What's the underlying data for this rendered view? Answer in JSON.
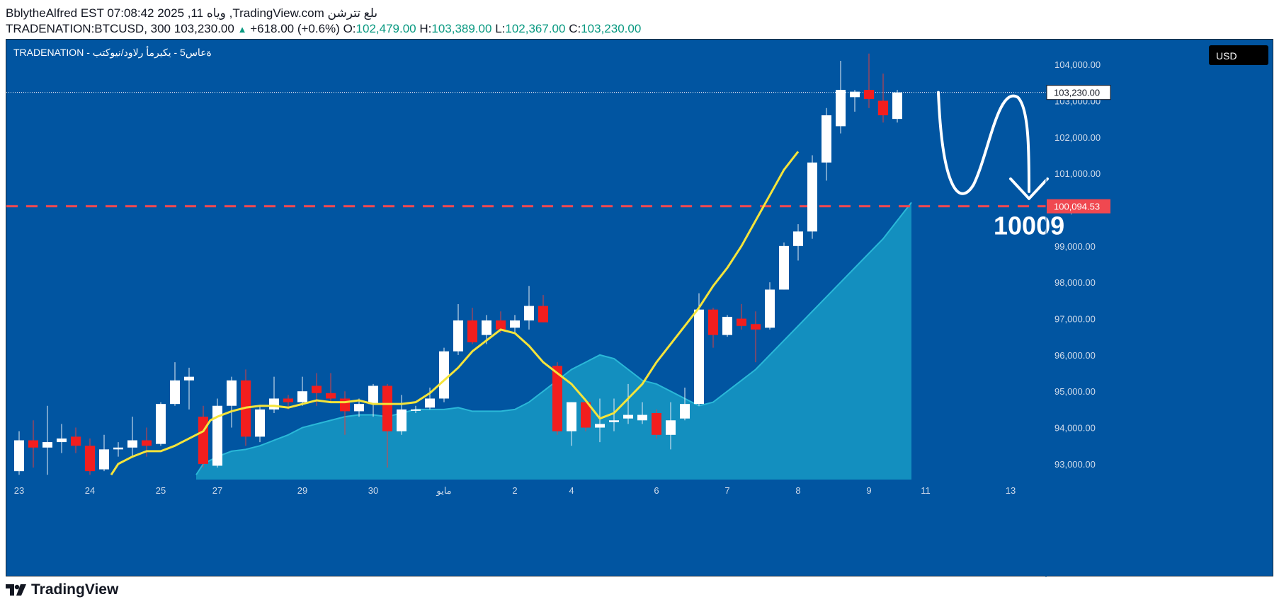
{
  "header": {
    "line1": "BblytheAlfred EST 07:08:42 2025 ,11 وياه ,TradingView.com ىلع تترشن",
    "symbol": "TRADENATION:BTCUSD, 300",
    "last": "103,230.00",
    "change_arrow": "▲",
    "change": "+618.00 (+0.6%)",
    "o_label": "O:",
    "o": "102,479.00",
    "h_label": "H:",
    "h": "103,389.00",
    "l_label": "L:",
    "l": "102,367.00",
    "c_label": "C:",
    "c": "103,230.00"
  },
  "chart_title": "TRADENATION - ة‌عاس5 - يكيرمأ رلاود/نيوكتب",
  "currency_button": "USD",
  "brand": "TradingView",
  "colors": {
    "background": "#0155a1",
    "up": "#ffffff",
    "down": "#f21e1e",
    "ma_fast": "#f5e43a",
    "area": "#1aa3c9",
    "dashed_level": "#f04850",
    "annotation": "#ffffff"
  },
  "chart_data": {
    "type": "candlestick",
    "title": "TRADENATION:BTCUSD 5h",
    "ylim": [
      92700,
      104500
    ],
    "y_ticks": [
      93000,
      94000,
      95000,
      96000,
      97000,
      98000,
      99000,
      100000,
      101000,
      102000,
      103000,
      104000
    ],
    "y_tick_labels": [
      "93,000.00",
      "94,000.00",
      "95,000.00",
      "96,000.00",
      "97,000.00",
      "98,000.00",
      "99,000.00",
      "100,000.00",
      "101,000.00",
      "102,000.00",
      "103,000.00",
      "104,000.00"
    ],
    "x_ticks": [
      {
        "i": 0,
        "label": "23"
      },
      {
        "i": 5,
        "label": "24"
      },
      {
        "i": 10,
        "label": "25"
      },
      {
        "i": 14,
        "label": "27"
      },
      {
        "i": 20,
        "label": "29"
      },
      {
        "i": 25,
        "label": "30"
      },
      {
        "i": 30,
        "label": "مايو"
      },
      {
        "i": 35,
        "label": "2"
      },
      {
        "i": 39,
        "label": "4"
      },
      {
        "i": 45,
        "label": "6"
      },
      {
        "i": 50,
        "label": "7"
      },
      {
        "i": 55,
        "label": "8"
      },
      {
        "i": 60,
        "label": "9"
      },
      {
        "i": 64,
        "label": "11"
      },
      {
        "i": 70,
        "label": "13"
      }
    ],
    "n_slots": 73,
    "candles": [
      {
        "o": 92800,
        "h": 93900,
        "l": 92700,
        "c": 93650
      },
      {
        "o": 93650,
        "h": 94200,
        "l": 92900,
        "c": 93450
      },
      {
        "o": 93450,
        "h": 94600,
        "l": 92700,
        "c": 93600
      },
      {
        "o": 93600,
        "h": 94100,
        "l": 93300,
        "c": 93700
      },
      {
        "o": 93750,
        "h": 94000,
        "l": 93300,
        "c": 93500
      },
      {
        "o": 93500,
        "h": 93700,
        "l": 92700,
        "c": 92800
      },
      {
        "o": 92850,
        "h": 93800,
        "l": 92800,
        "c": 93400
      },
      {
        "o": 93400,
        "h": 93600,
        "l": 93200,
        "c": 93450
      },
      {
        "o": 93450,
        "h": 94300,
        "l": 93200,
        "c": 93650
      },
      {
        "o": 93650,
        "h": 94000,
        "l": 93200,
        "c": 93500
      },
      {
        "o": 93550,
        "h": 94700,
        "l": 93500,
        "c": 94650
      },
      {
        "o": 94650,
        "h": 95800,
        "l": 94600,
        "c": 95300
      },
      {
        "o": 95300,
        "h": 95650,
        "l": 94500,
        "c": 95400
      },
      {
        "o": 94300,
        "h": 94600,
        "l": 92900,
        "c": 93000
      },
      {
        "o": 92950,
        "h": 94800,
        "l": 92900,
        "c": 94600
      },
      {
        "o": 94600,
        "h": 95400,
        "l": 94000,
        "c": 95300
      },
      {
        "o": 95300,
        "h": 95600,
        "l": 93500,
        "c": 93750
      },
      {
        "o": 93750,
        "h": 94600,
        "l": 93600,
        "c": 94500
      },
      {
        "o": 94500,
        "h": 95400,
        "l": 94400,
        "c": 94800
      },
      {
        "o": 94800,
        "h": 94900,
        "l": 94500,
        "c": 94700
      },
      {
        "o": 94700,
        "h": 95400,
        "l": 94600,
        "c": 95000
      },
      {
        "o": 95150,
        "h": 95500,
        "l": 94600,
        "c": 94950
      },
      {
        "o": 94950,
        "h": 95500,
        "l": 94700,
        "c": 94800
      },
      {
        "o": 94800,
        "h": 95000,
        "l": 93800,
        "c": 94450
      },
      {
        "o": 94450,
        "h": 94800,
        "l": 94300,
        "c": 94650
      },
      {
        "o": 94650,
        "h": 95200,
        "l": 94300,
        "c": 95150
      },
      {
        "o": 95150,
        "h": 95200,
        "l": 92900,
        "c": 93900
      },
      {
        "o": 93900,
        "h": 94900,
        "l": 93800,
        "c": 94500
      },
      {
        "o": 94500,
        "h": 94600,
        "l": 94400,
        "c": 94500
      },
      {
        "o": 94550,
        "h": 95100,
        "l": 94500,
        "c": 94800
      },
      {
        "o": 94800,
        "h": 96200,
        "l": 94700,
        "c": 96100
      },
      {
        "o": 96100,
        "h": 97400,
        "l": 96000,
        "c": 96950
      },
      {
        "o": 96950,
        "h": 97300,
        "l": 96300,
        "c": 96350
      },
      {
        "o": 96550,
        "h": 97100,
        "l": 96300,
        "c": 96950
      },
      {
        "o": 96950,
        "h": 97200,
        "l": 96600,
        "c": 96700
      },
      {
        "o": 96750,
        "h": 97100,
        "l": 96600,
        "c": 96950
      },
      {
        "o": 96950,
        "h": 97900,
        "l": 96700,
        "c": 97350
      },
      {
        "o": 97350,
        "h": 97650,
        "l": 96900,
        "c": 96900
      },
      {
        "o": 95700,
        "h": 95800,
        "l": 93800,
        "c": 93900
      },
      {
        "o": 93900,
        "h": 94700,
        "l": 93500,
        "c": 94700
      },
      {
        "o": 94700,
        "h": 94700,
        "l": 93900,
        "c": 94000
      },
      {
        "o": 94000,
        "h": 94800,
        "l": 93600,
        "c": 94100
      },
      {
        "o": 94150,
        "h": 94800,
        "l": 93900,
        "c": 94200
      },
      {
        "o": 94250,
        "h": 95200,
        "l": 94100,
        "c": 94350
      },
      {
        "o": 94200,
        "h": 94700,
        "l": 94100,
        "c": 94350
      },
      {
        "o": 94400,
        "h": 94500,
        "l": 93700,
        "c": 93800
      },
      {
        "o": 93800,
        "h": 94700,
        "l": 93400,
        "c": 94200
      },
      {
        "o": 94250,
        "h": 95100,
        "l": 94200,
        "c": 94650
      },
      {
        "o": 94650,
        "h": 97700,
        "l": 94600,
        "c": 97250
      },
      {
        "o": 97250,
        "h": 97300,
        "l": 96200,
        "c": 96550
      },
      {
        "o": 96550,
        "h": 97100,
        "l": 96500,
        "c": 97050
      },
      {
        "o": 97000,
        "h": 97400,
        "l": 96700,
        "c": 96800
      },
      {
        "o": 96850,
        "h": 97200,
        "l": 95800,
        "c": 96700
      },
      {
        "o": 96750,
        "h": 98000,
        "l": 96700,
        "c": 97800
      },
      {
        "o": 97800,
        "h": 99100,
        "l": 97800,
        "c": 99000
      },
      {
        "o": 99000,
        "h": 99600,
        "l": 98600,
        "c": 99400
      },
      {
        "o": 99400,
        "h": 101500,
        "l": 99200,
        "c": 101300
      },
      {
        "o": 101300,
        "h": 102800,
        "l": 100800,
        "c": 102600
      },
      {
        "o": 102300,
        "h": 104100,
        "l": 102100,
        "c": 103300
      },
      {
        "o": 103100,
        "h": 103300,
        "l": 102700,
        "c": 103250
      },
      {
        "o": 103300,
        "h": 104300,
        "l": 102800,
        "c": 103050
      },
      {
        "o": 103000,
        "h": 103750,
        "l": 102400,
        "c": 102600
      },
      {
        "o": 102500,
        "h": 103300,
        "l": 102400,
        "c": 103230
      }
    ],
    "ma_fast": [
      92700,
      93000,
      93200,
      93350,
      93350,
      93500,
      93700,
      93900,
      94200,
      94300,
      94450,
      94550,
      94600,
      94600,
      94550,
      94650,
      94750,
      94700,
      94700,
      94750,
      94650,
      94650,
      94650,
      94700,
      94950,
      95300,
      95650,
      96100,
      96400,
      96700,
      96600,
      96250,
      95800,
      95500,
      95200,
      94750,
      94250,
      94400,
      94800,
      95200,
      95800,
      96300,
      96800,
      97300,
      97900,
      98400,
      99000,
      99700,
      100400,
      101100,
      101600
    ],
    "ma_fast_x": [
      6.5,
      7,
      8,
      9,
      10,
      11,
      12,
      13,
      13.5,
      14,
      15,
      16,
      17,
      18,
      19,
      20,
      21,
      22,
      23,
      24,
      25,
      26,
      27,
      28,
      29,
      30,
      31,
      32,
      33,
      34,
      35,
      36,
      37,
      38,
      39,
      40,
      41,
      42,
      43,
      44,
      45,
      46,
      47,
      48,
      49,
      50,
      51,
      52,
      53,
      54,
      55
    ],
    "area_line": [
      92700,
      93000,
      93200,
      93350,
      93400,
      93500,
      93650,
      93800,
      94000,
      94100,
      94200,
      94300,
      94350,
      94350,
      94300,
      94400,
      94500,
      94500,
      94500,
      94550,
      94450,
      94450,
      94450,
      94500,
      94700,
      95000,
      95300,
      95600,
      95800,
      96000,
      95900,
      95600,
      95300,
      95200,
      95000,
      94800,
      94600,
      94700,
      95000,
      95300,
      95600,
      96000,
      96400,
      96800,
      97200,
      97600,
      98000,
      98400,
      98800,
      99200,
      99700,
      100200
    ],
    "area_x": [
      12.5,
      13,
      14,
      15,
      16,
      17,
      18,
      19,
      20,
      21,
      22,
      23,
      24,
      25,
      26,
      27,
      28,
      29,
      30,
      31,
      32,
      33,
      34,
      35,
      36,
      37,
      38,
      39,
      40,
      41,
      42,
      43,
      44,
      45,
      46,
      47,
      48,
      49,
      50,
      51,
      52,
      53,
      54,
      55,
      56,
      57,
      58,
      59,
      60,
      61,
      62,
      63
    ],
    "current_price": 103230,
    "current_price_label": "103,230.00",
    "level": 100094.53,
    "level_label": "100,094.53",
    "annotation_text": "10009"
  }
}
